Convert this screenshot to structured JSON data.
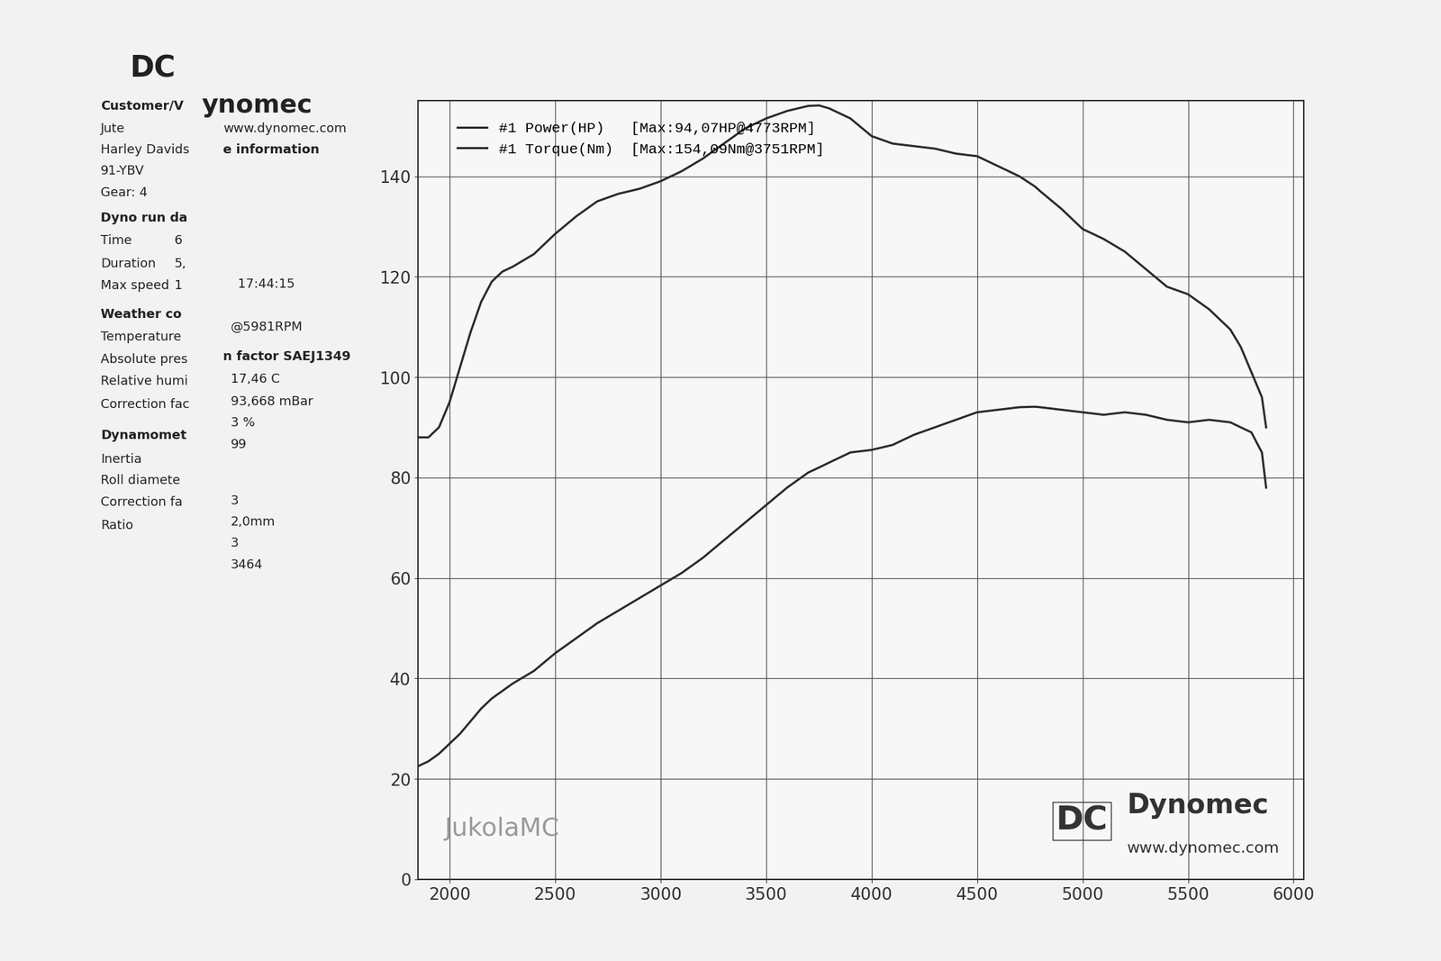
{
  "chart_data": {
    "type": "line",
    "x": [
      1850,
      1900,
      1950,
      2000,
      2050,
      2100,
      2150,
      2200,
      2250,
      2300,
      2400,
      2500,
      2600,
      2700,
      2800,
      2900,
      3000,
      3100,
      3200,
      3300,
      3400,
      3500,
      3600,
      3700,
      3751,
      3800,
      3900,
      4000,
      4100,
      4200,
      4300,
      4400,
      4500,
      4600,
      4700,
      4773,
      4800,
      4900,
      5000,
      5100,
      5200,
      5300,
      5400,
      5500,
      5600,
      5700,
      5750,
      5800,
      5850,
      5870
    ],
    "series": [
      {
        "name": "#1 Power(HP)   [Max:94,07HP@4773RPM]",
        "color": "#2b2b2b",
        "values": [
          22.5,
          23.5,
          25,
          27,
          29,
          31.5,
          34,
          36,
          37.5,
          39,
          41.5,
          45,
          48,
          51,
          53.5,
          56,
          58.5,
          61,
          64,
          67.5,
          71,
          74.5,
          78,
          81,
          82,
          83,
          85,
          85.5,
          86.5,
          88.5,
          90,
          91.5,
          93,
          93.5,
          94,
          94.1,
          94,
          93.5,
          93,
          92.5,
          93,
          92.5,
          91.5,
          91,
          91.5,
          91,
          90,
          89,
          85,
          78
        ]
      },
      {
        "name": "#1 Torque(Nm)  [Max:154,09Nm@3751RPM]",
        "color": "#2b2b2b",
        "values": [
          88,
          88,
          90,
          95,
          102,
          109,
          115,
          119,
          121,
          122,
          124.5,
          128.5,
          132,
          135,
          136.5,
          137.5,
          139,
          141,
          143.5,
          146.5,
          149.5,
          151.5,
          153,
          154,
          154.1,
          153.5,
          151.5,
          148,
          146.5,
          146,
          145.5,
          144.5,
          144,
          142,
          140,
          138,
          137,
          133.5,
          129.5,
          127.5,
          125,
          121.5,
          118,
          116.5,
          113.5,
          109.5,
          106,
          101,
          96,
          90
        ]
      }
    ],
    "xlim": [
      1850,
      6050
    ],
    "xticks": [
      2000,
      2500,
      3000,
      3500,
      4000,
      4500,
      5000,
      5500,
      6000
    ],
    "ylim": [
      0,
      155
    ],
    "yticks": [
      0,
      20,
      40,
      60,
      80,
      100,
      120,
      140
    ],
    "grid": true,
    "legend": "upper left",
    "annotations": [
      "JukolaMC",
      "DC",
      "Dynomec",
      "www.dynomec.com"
    ]
  },
  "info_panel": {
    "header": [
      "DC",
      "ynomec"
    ],
    "labels": [
      "Customer/V",
      "Jute",
      "Harley Davids",
      "91-YBV",
      "Gear: 4",
      "Dyno run da",
      "Time",
      "Duration",
      "Max speed",
      "Weather co",
      "Temperature",
      "Absolute pres",
      "Relative humi",
      "Correction fac",
      "Dynamomet",
      "Inertia",
      "Roll diamete",
      "Correction fa",
      "Ratio"
    ],
    "values": [
      "www.dynomec.com",
      "e information",
      "6",
      "5,",
      "1",
      "17:44:15",
      "@5981RPM",
      "n factor SAEJ1349",
      "17,46 C",
      "93,668 mBar",
      "3 %",
      "99",
      "3",
      "2,0mm",
      "3",
      "3464"
    ]
  }
}
